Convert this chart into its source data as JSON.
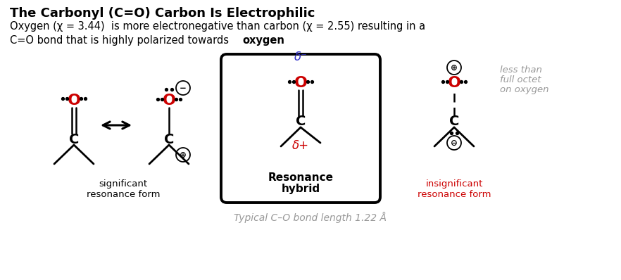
{
  "title": "The Carbonyl (C=O) Carbon Is Electrophilic",
  "subtitle_line1": "Oxygen (χ = 3.44)  is more electronegative than carbon (χ = 2.55) resulting in a",
  "subtitle_line2": "C=O bond that is highly polarized towards ",
  "subtitle_bold": "oxygen",
  "bottom_text": "Typical C–O bond length 1.22 Å",
  "sig_label": "significant\nresonance form",
  "insig_label": "insignificant\nresonance form",
  "hybrid_label_line1": "Resonance",
  "hybrid_label_line2": "hybrid",
  "less_than_text_line1": "less than",
  "less_than_text_line2": "full octet",
  "less_than_text_line3": "on oxygen",
  "bg_color": "#ffffff",
  "black": "#000000",
  "red": "#cc0000",
  "blue": "#3333cc",
  "gray": "#999999"
}
